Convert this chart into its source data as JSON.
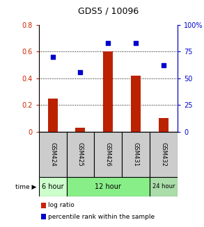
{
  "title": "GDS5 / 10096",
  "samples": [
    "GSM424",
    "GSM425",
    "GSM426",
    "GSM431",
    "GSM432"
  ],
  "log_ratio": [
    0.25,
    0.03,
    0.6,
    0.42,
    0.1
  ],
  "percentile_rank": [
    70,
    56,
    83,
    83,
    62
  ],
  "bar_color": "#bb2200",
  "dot_color": "#0000cc",
  "ylim_left": [
    0,
    0.8
  ],
  "ylim_right": [
    0,
    100
  ],
  "yticks_left": [
    0,
    0.2,
    0.4,
    0.6,
    0.8
  ],
  "ytick_labels_left": [
    "0",
    "0.2",
    "0.4",
    "0.6",
    "0.8"
  ],
  "yticks_right": [
    0,
    25,
    50,
    75,
    100
  ],
  "ytick_labels_right": [
    "0",
    "25",
    "50",
    "75",
    "100%"
  ],
  "bar_color_legend": "#cc2200",
  "dot_color_legend": "#0000cc",
  "sample_box_color": "#cccccc",
  "time_groups_pos": [
    {
      "label": "6 hour",
      "start": 0,
      "end": 1,
      "color": "#ccffcc"
    },
    {
      "label": "12 hour",
      "start": 1,
      "end": 4,
      "color": "#88ee88"
    },
    {
      "label": "24 hour",
      "start": 4,
      "end": 5,
      "color": "#aaddaa"
    }
  ],
  "legend_labels": [
    "log ratio",
    "percentile rank within the sample"
  ],
  "bar_width": 0.35
}
